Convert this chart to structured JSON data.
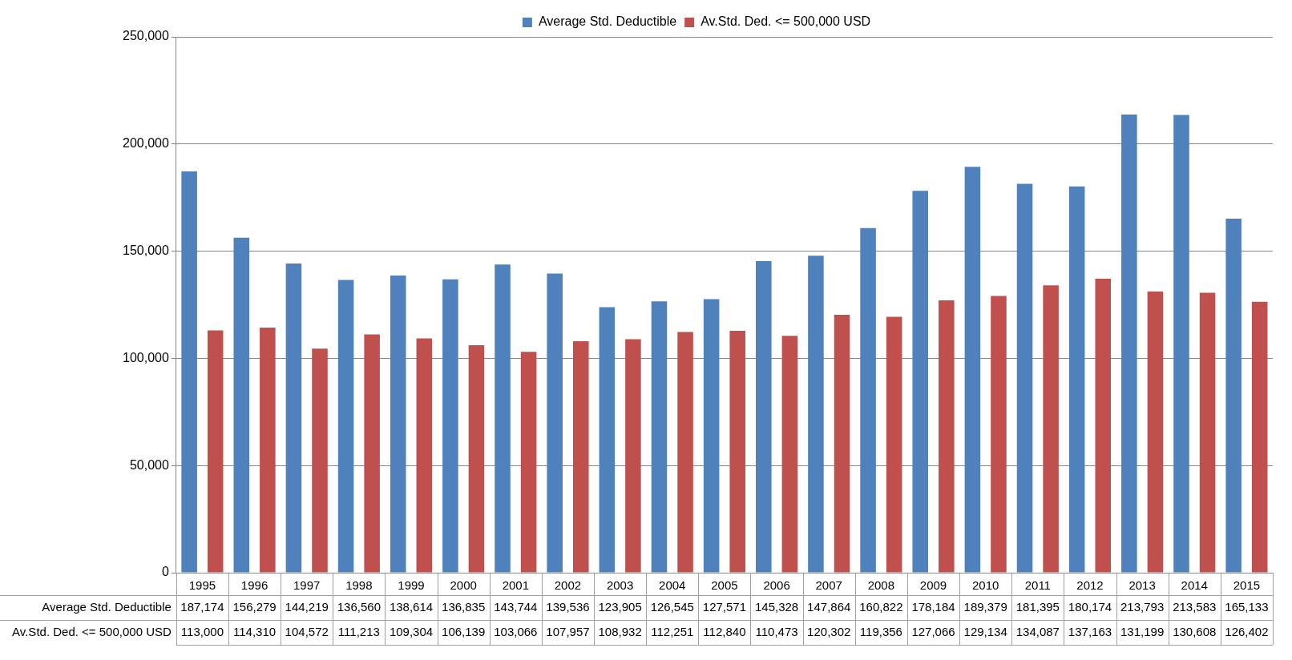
{
  "chart_data": {
    "type": "bar",
    "categories": [
      "1995",
      "1996",
      "1997",
      "1998",
      "1999",
      "2000",
      "2001",
      "2002",
      "2003",
      "2004",
      "2005",
      "2006",
      "2007",
      "2008",
      "2009",
      "2010",
      "2011",
      "2012",
      "2013",
      "2014",
      "2015"
    ],
    "series": [
      {
        "name": "Average Std. Deductible",
        "color": "#4f81bd",
        "values": [
          187174,
          156279,
          144219,
          136560,
          138614,
          136835,
          143744,
          139536,
          123905,
          126545,
          127571,
          145328,
          147864,
          160822,
          178184,
          189379,
          181395,
          180174,
          213793,
          213583,
          165133
        ],
        "value_labels": [
          "187,174",
          "156,279",
          "144,219",
          "136,560",
          "138,614",
          "136,835",
          "143,744",
          "139,536",
          "123,905",
          "126,545",
          "127,571",
          "145,328",
          "147,864",
          "160,822",
          "178,184",
          "189,379",
          "181,395",
          "180,174",
          "213,793",
          "213,583",
          "165,133"
        ]
      },
      {
        "name": "Av.Std. Ded. <= 500,000 USD",
        "color": "#c0504d",
        "values": [
          113000,
          114310,
          104572,
          111213,
          109304,
          106139,
          103066,
          107957,
          108932,
          112251,
          112840,
          110473,
          120302,
          119356,
          127066,
          129134,
          134087,
          137163,
          131199,
          130608,
          126402
        ],
        "value_labels": [
          "113,000",
          "114,310",
          "104,572",
          "111,213",
          "109,304",
          "106,139",
          "103,066",
          "107,957",
          "108,932",
          "112,251",
          "112,840",
          "110,473",
          "120,302",
          "119,356",
          "127,066",
          "129,134",
          "134,087",
          "137,163",
          "131,199",
          "130,608",
          "126,402"
        ]
      }
    ],
    "ylim": [
      0,
      250000
    ],
    "yticks": [
      0,
      {
        "value": 50000,
        "label": "50,000"
      },
      {
        "value": 100000,
        "label": "100,000"
      },
      {
        "value": 150000,
        "label": "150,000"
      },
      {
        "value": 200000,
        "label": "200,000"
      },
      {
        "value": 250000,
        "label": "250,000"
      }
    ],
    "grid": "y",
    "legend": "top"
  }
}
